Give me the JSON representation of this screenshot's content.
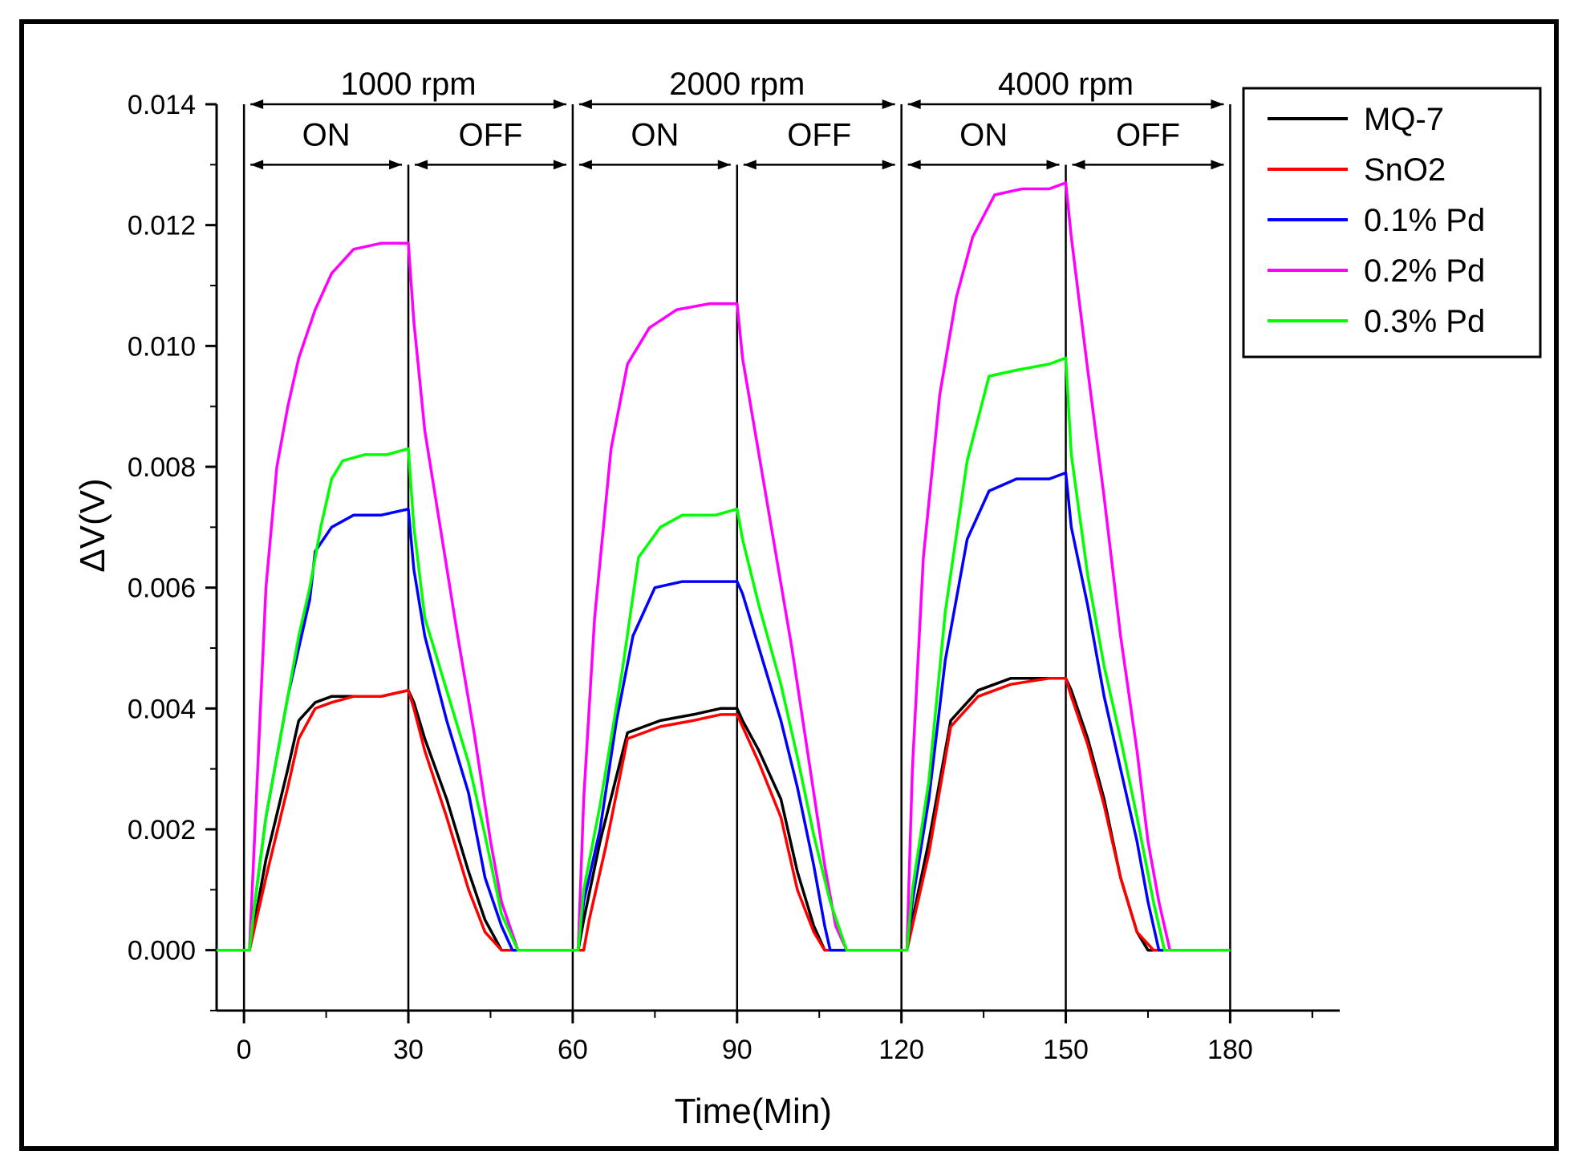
{
  "chart_data": {
    "type": "line",
    "title": "",
    "xlabel": "Time(Min)",
    "ylabel": "ΔV(V)",
    "xlim": [
      -5,
      200
    ],
    "ylim": [
      -0.001,
      0.014
    ],
    "xticks": [
      0,
      30,
      60,
      90,
      120,
      150,
      180
    ],
    "yticks": [
      0.0,
      0.002,
      0.004,
      0.006,
      0.008,
      0.01,
      0.012,
      0.014
    ],
    "xtick_labels": [
      "0",
      "30",
      "60",
      "90",
      "120",
      "150",
      "180"
    ],
    "ytick_labels": [
      "0.000",
      "0.002",
      "0.004",
      "0.006",
      "0.008",
      "0.010",
      "0.012",
      "0.014"
    ],
    "grid": false,
    "legend_position": "top-right",
    "regions": [
      {
        "label": "1000 rpm",
        "start": 0,
        "end": 60,
        "on_label": "ON",
        "off_label": "OFF",
        "split": 30
      },
      {
        "label": "2000 rpm",
        "start": 60,
        "end": 120,
        "on_label": "ON",
        "off_label": "OFF",
        "split": 90
      },
      {
        "label": "4000 rpm",
        "start": 120,
        "end": 180,
        "on_label": "ON",
        "off_label": "OFF",
        "split": 150
      }
    ],
    "series": [
      {
        "name": "MQ-7",
        "color": "#000000",
        "points": [
          [
            -5,
            0
          ],
          [
            1,
            0
          ],
          [
            2,
            0.0005
          ],
          [
            4,
            0.0015
          ],
          [
            8,
            0.003
          ],
          [
            10,
            0.0038
          ],
          [
            13,
            0.0041
          ],
          [
            16,
            0.0042
          ],
          [
            20,
            0.0042
          ],
          [
            25,
            0.0042
          ],
          [
            30,
            0.0043
          ],
          [
            31,
            0.0041
          ],
          [
            33,
            0.0035
          ],
          [
            37,
            0.0025
          ],
          [
            41,
            0.0013
          ],
          [
            44,
            0.0005
          ],
          [
            47,
            0.0
          ],
          [
            60,
            0
          ],
          [
            61,
            0
          ],
          [
            62,
            0.0005
          ],
          [
            65,
            0.0018
          ],
          [
            70,
            0.0036
          ],
          [
            76,
            0.0038
          ],
          [
            82,
            0.0039
          ],
          [
            87,
            0.004
          ],
          [
            90,
            0.004
          ],
          [
            91,
            0.0038
          ],
          [
            94,
            0.0033
          ],
          [
            98,
            0.0025
          ],
          [
            101,
            0.0013
          ],
          [
            104,
            0.0004
          ],
          [
            106,
            0.0
          ],
          [
            121,
            0
          ],
          [
            122,
            0.0005
          ],
          [
            125,
            0.0018
          ],
          [
            129,
            0.0038
          ],
          [
            134,
            0.0043
          ],
          [
            140,
            0.0045
          ],
          [
            147,
            0.0045
          ],
          [
            150,
            0.0045
          ],
          [
            151,
            0.0043
          ],
          [
            154,
            0.0035
          ],
          [
            157,
            0.0025
          ],
          [
            160,
            0.0012
          ],
          [
            163,
            0.0003
          ],
          [
            165,
            0.0
          ],
          [
            180,
            0
          ]
        ]
      },
      {
        "name": "SnO2",
        "color": "#ff0000",
        "points": [
          [
            -5,
            0
          ],
          [
            1,
            0
          ],
          [
            2,
            0.0004
          ],
          [
            4,
            0.0012
          ],
          [
            8,
            0.0027
          ],
          [
            10,
            0.0035
          ],
          [
            13,
            0.004
          ],
          [
            16,
            0.0041
          ],
          [
            20,
            0.0042
          ],
          [
            25,
            0.0042
          ],
          [
            30,
            0.0043
          ],
          [
            31,
            0.004
          ],
          [
            33,
            0.0033
          ],
          [
            37,
            0.0022
          ],
          [
            41,
            0.001
          ],
          [
            44,
            0.0003
          ],
          [
            47,
            0.0
          ],
          [
            60,
            0
          ],
          [
            62,
            0
          ],
          [
            63,
            0.0005
          ],
          [
            66,
            0.0017
          ],
          [
            70,
            0.0035
          ],
          [
            76,
            0.0037
          ],
          [
            82,
            0.0038
          ],
          [
            87,
            0.0039
          ],
          [
            90,
            0.0039
          ],
          [
            91,
            0.0037
          ],
          [
            94,
            0.0031
          ],
          [
            98,
            0.0022
          ],
          [
            101,
            0.001
          ],
          [
            104,
            0.0003
          ],
          [
            106,
            0.0
          ],
          [
            121,
            0
          ],
          [
            122,
            0.0004
          ],
          [
            125,
            0.0016
          ],
          [
            129,
            0.0037
          ],
          [
            134,
            0.0042
          ],
          [
            140,
            0.0044
          ],
          [
            147,
            0.0045
          ],
          [
            150,
            0.0045
          ],
          [
            151,
            0.0042
          ],
          [
            154,
            0.0034
          ],
          [
            157,
            0.0024
          ],
          [
            160,
            0.0012
          ],
          [
            163,
            0.0003
          ],
          [
            166,
            0.0
          ],
          [
            180,
            0
          ]
        ]
      },
      {
        "name": "0.1% Pd",
        "color": "#0000ff",
        "points": [
          [
            -5,
            0
          ],
          [
            1,
            0
          ],
          [
            2,
            0.0008
          ],
          [
            4,
            0.0022
          ],
          [
            8,
            0.0042
          ],
          [
            10,
            0.005
          ],
          [
            12,
            0.0058
          ],
          [
            13,
            0.0066
          ],
          [
            16,
            0.007
          ],
          [
            20,
            0.0072
          ],
          [
            25,
            0.0072
          ],
          [
            30,
            0.0073
          ],
          [
            31,
            0.0063
          ],
          [
            33,
            0.0052
          ],
          [
            37,
            0.0038
          ],
          [
            41,
            0.0026
          ],
          [
            44,
            0.0012
          ],
          [
            47,
            0.0004
          ],
          [
            49,
            0.0
          ],
          [
            60,
            0
          ],
          [
            61,
            0
          ],
          [
            62,
            0.0008
          ],
          [
            65,
            0.002
          ],
          [
            68,
            0.0038
          ],
          [
            71,
            0.0052
          ],
          [
            75,
            0.006
          ],
          [
            80,
            0.0061
          ],
          [
            86,
            0.0061
          ],
          [
            90,
            0.0061
          ],
          [
            91,
            0.0059
          ],
          [
            94,
            0.005
          ],
          [
            98,
            0.0038
          ],
          [
            101,
            0.0027
          ],
          [
            104,
            0.0014
          ],
          [
            106,
            0.0004
          ],
          [
            107,
            0.0
          ],
          [
            121,
            0
          ],
          [
            122,
            0.0008
          ],
          [
            125,
            0.0025
          ],
          [
            128,
            0.0048
          ],
          [
            132,
            0.0068
          ],
          [
            136,
            0.0076
          ],
          [
            141,
            0.0078
          ],
          [
            147,
            0.0078
          ],
          [
            150,
            0.0079
          ],
          [
            151,
            0.007
          ],
          [
            154,
            0.0057
          ],
          [
            157,
            0.0042
          ],
          [
            160,
            0.003
          ],
          [
            163,
            0.0018
          ],
          [
            165,
            0.0008
          ],
          [
            167,
            0.0
          ],
          [
            180,
            0
          ]
        ]
      },
      {
        "name": "0.2% Pd",
        "color": "#ff00ff",
        "points": [
          [
            -5,
            0
          ],
          [
            1,
            0
          ],
          [
            2,
            0.002
          ],
          [
            4,
            0.006
          ],
          [
            6,
            0.008
          ],
          [
            8,
            0.009
          ],
          [
            10,
            0.0098
          ],
          [
            13,
            0.0106
          ],
          [
            16,
            0.0112
          ],
          [
            20,
            0.0116
          ],
          [
            25,
            0.0117
          ],
          [
            30,
            0.0117
          ],
          [
            31,
            0.0104
          ],
          [
            33,
            0.0086
          ],
          [
            36,
            0.0069
          ],
          [
            39,
            0.0052
          ],
          [
            42,
            0.0036
          ],
          [
            45,
            0.0018
          ],
          [
            47,
            0.0008
          ],
          [
            50,
            0.0
          ],
          [
            60,
            0
          ],
          [
            61,
            0
          ],
          [
            62,
            0.0025
          ],
          [
            64,
            0.0055
          ],
          [
            67,
            0.0083
          ],
          [
            70,
            0.0097
          ],
          [
            74,
            0.0103
          ],
          [
            79,
            0.0106
          ],
          [
            85,
            0.0107
          ],
          [
            90,
            0.0107
          ],
          [
            91,
            0.0098
          ],
          [
            94,
            0.0082
          ],
          [
            97,
            0.0066
          ],
          [
            100,
            0.005
          ],
          [
            103,
            0.0032
          ],
          [
            106,
            0.0014
          ],
          [
            108,
            0.0004
          ],
          [
            110,
            0.0
          ],
          [
            121,
            0
          ],
          [
            122,
            0.003
          ],
          [
            124,
            0.0065
          ],
          [
            127,
            0.0092
          ],
          [
            130,
            0.0108
          ],
          [
            133,
            0.0118
          ],
          [
            137,
            0.0125
          ],
          [
            142,
            0.0126
          ],
          [
            147,
            0.0126
          ],
          [
            150,
            0.0127
          ],
          [
            151,
            0.0118
          ],
          [
            154,
            0.0096
          ],
          [
            157,
            0.0075
          ],
          [
            160,
            0.0052
          ],
          [
            163,
            0.0033
          ],
          [
            165,
            0.0018
          ],
          [
            167,
            0.0008
          ],
          [
            169,
            0.0
          ],
          [
            180,
            0
          ]
        ]
      },
      {
        "name": "0.3% Pd",
        "color": "#00ff00",
        "points": [
          [
            -5,
            0
          ],
          [
            1,
            0
          ],
          [
            2,
            0.0008
          ],
          [
            4,
            0.0022
          ],
          [
            8,
            0.0042
          ],
          [
            10,
            0.0052
          ],
          [
            12,
            0.006
          ],
          [
            14,
            0.007
          ],
          [
            16,
            0.0078
          ],
          [
            18,
            0.0081
          ],
          [
            22,
            0.0082
          ],
          [
            26,
            0.0082
          ],
          [
            30,
            0.0083
          ],
          [
            31,
            0.007
          ],
          [
            33,
            0.0055
          ],
          [
            37,
            0.0043
          ],
          [
            41,
            0.0031
          ],
          [
            44,
            0.0019
          ],
          [
            47,
            0.0006
          ],
          [
            50,
            0.0
          ],
          [
            60,
            0
          ],
          [
            61,
            0
          ],
          [
            62,
            0.001
          ],
          [
            65,
            0.0024
          ],
          [
            69,
            0.0046
          ],
          [
            72,
            0.0065
          ],
          [
            76,
            0.007
          ],
          [
            80,
            0.0072
          ],
          [
            86,
            0.0072
          ],
          [
            90,
            0.0073
          ],
          [
            91,
            0.0068
          ],
          [
            94,
            0.0057
          ],
          [
            98,
            0.0044
          ],
          [
            101,
            0.0032
          ],
          [
            104,
            0.0019
          ],
          [
            107,
            0.0008
          ],
          [
            110,
            0.0
          ],
          [
            121,
            0
          ],
          [
            122,
            0.001
          ],
          [
            125,
            0.0028
          ],
          [
            128,
            0.0056
          ],
          [
            132,
            0.0081
          ],
          [
            136,
            0.0095
          ],
          [
            141,
            0.0096
          ],
          [
            147,
            0.0097
          ],
          [
            150,
            0.0098
          ],
          [
            151,
            0.0082
          ],
          [
            154,
            0.0062
          ],
          [
            157,
            0.0047
          ],
          [
            160,
            0.0035
          ],
          [
            163,
            0.0022
          ],
          [
            166,
            0.0008
          ],
          [
            168,
            0.0
          ],
          [
            180,
            0
          ]
        ]
      }
    ]
  }
}
